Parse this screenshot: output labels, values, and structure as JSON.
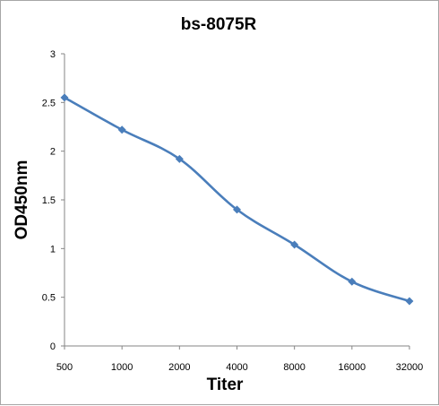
{
  "chart_data": {
    "type": "line",
    "title": "bs-8075R",
    "xlabel": "Titer",
    "ylabel": "OD450nm",
    "categories": [
      "500",
      "1000",
      "2000",
      "4000",
      "8000",
      "16000",
      "32000"
    ],
    "series": [
      {
        "values": [
          2.55,
          2.22,
          1.92,
          1.4,
          1.04,
          0.66,
          0.46
        ],
        "color": "#4a7ebb",
        "marker": "diamond"
      }
    ],
    "ylim": [
      0,
      3
    ],
    "yticks": [
      "0",
      "0.5",
      "1",
      "1.5",
      "2",
      "2.5",
      "3"
    ],
    "grid": false,
    "legend": "none"
  }
}
